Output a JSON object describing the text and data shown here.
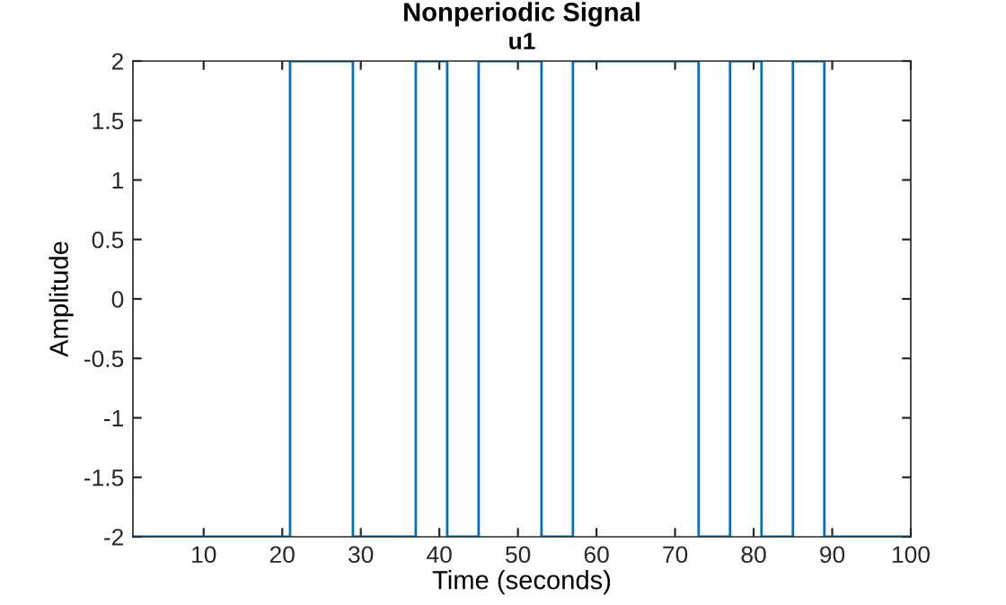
{
  "chart_data": {
    "type": "step",
    "title": "Nonperiodic Signal",
    "subtitle": "u1",
    "xlabel": "Time (seconds)",
    "ylabel": "Amplitude",
    "x": [
      1,
      21,
      29,
      37,
      41,
      45,
      53,
      57,
      73,
      77,
      81,
      85,
      89,
      100
    ],
    "series": [
      {
        "color": "#0072bd",
        "values": [
          -2,
          2,
          -2,
          2,
          -2,
          2,
          -2,
          2,
          -2,
          2,
          -2,
          2,
          -2,
          -2
        ]
      }
    ],
    "xlim": [
      1,
      100
    ],
    "xticks": [
      10,
      20,
      30,
      40,
      50,
      60,
      70,
      80,
      90,
      100
    ],
    "ylim": [
      -2,
      2
    ],
    "yticks": [
      -2,
      -1.5,
      -1,
      -0.5,
      0,
      0.5,
      1,
      1.5,
      2
    ],
    "grid": false,
    "legend": false
  }
}
